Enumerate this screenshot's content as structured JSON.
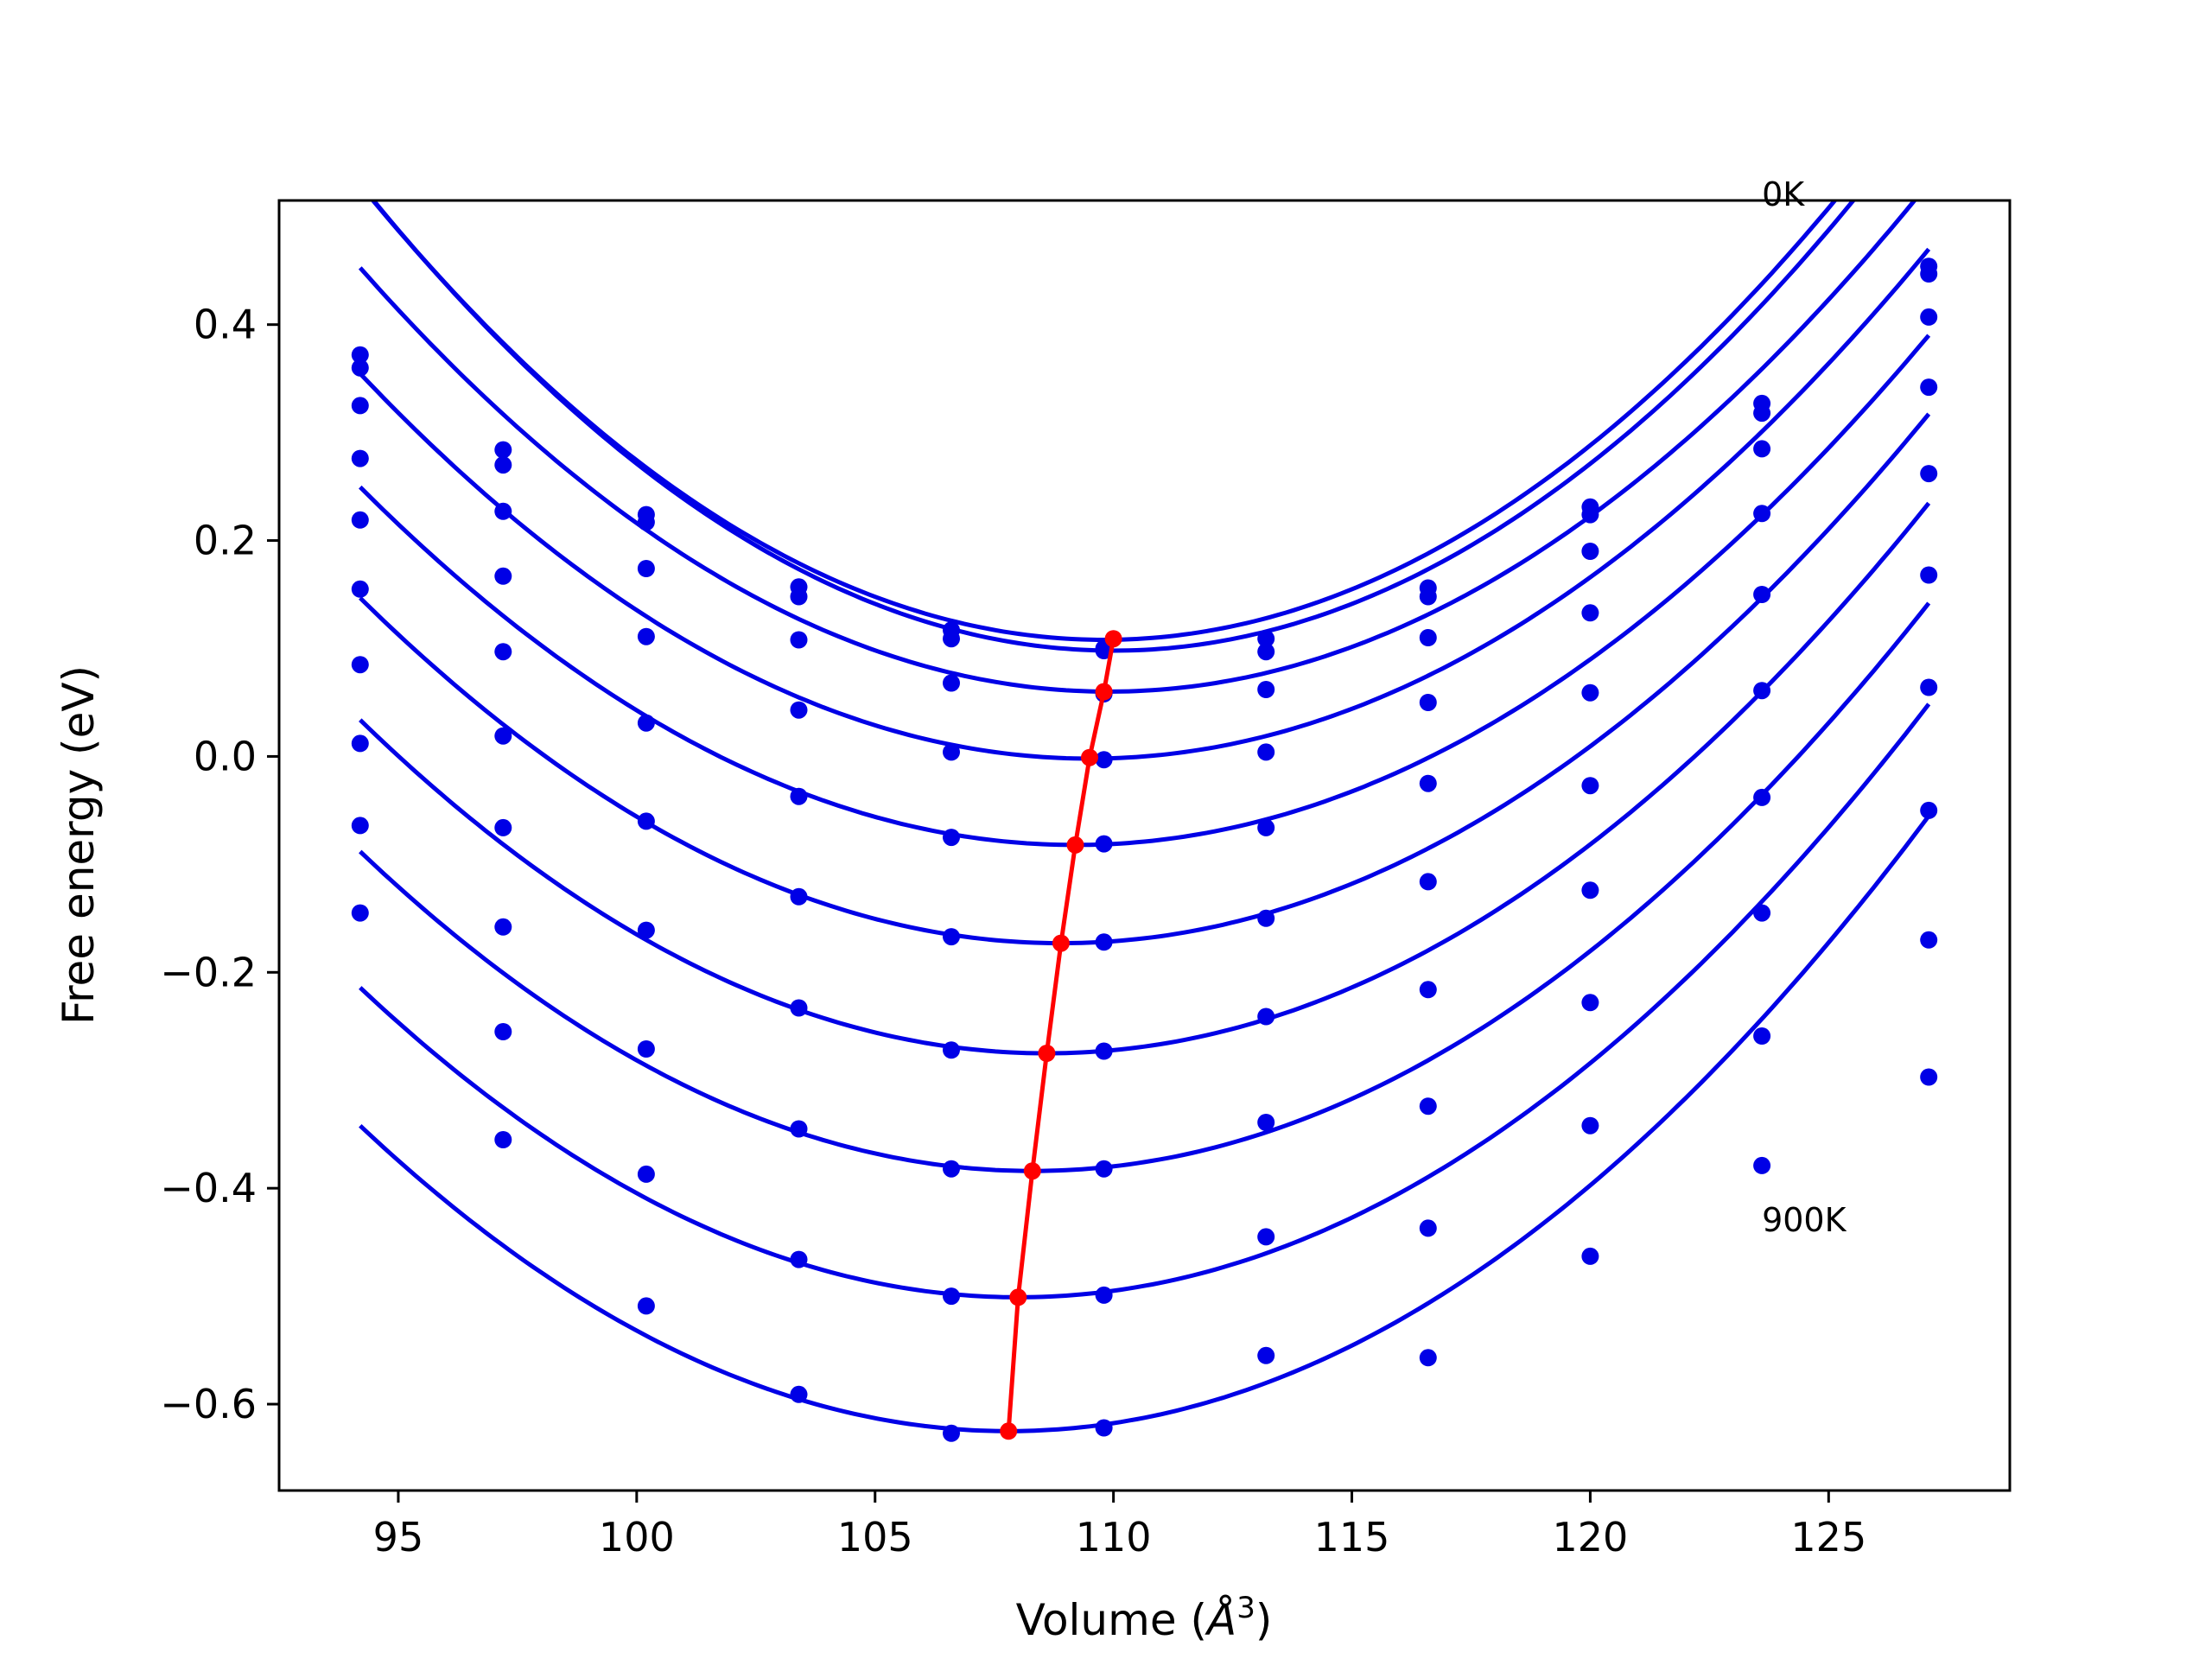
{
  "chart_data": {
    "type": "line",
    "xlabel": "Volume (",
    "xlabel_unit_base": "Å",
    "xlabel_unit_exp": "3",
    "xlabel_suffix": ")",
    "ylabel": "Free energy (eV)",
    "xlim": [
      92.5,
      128.8
    ],
    "ylim": [
      -0.68,
      0.515
    ],
    "xticks": [
      95,
      100,
      105,
      110,
      115,
      120,
      125
    ],
    "xtick_labels": [
      "95",
      "100",
      "105",
      "110",
      "115",
      "120",
      "125"
    ],
    "yticks": [
      -0.6,
      -0.4,
      -0.2,
      0.0,
      0.2,
      0.4
    ],
    "ytick_labels": [
      "−0.6",
      "−0.4",
      "−0.2",
      "0.0",
      "0.2",
      "0.4"
    ],
    "annotations": [
      {
        "text": "0K",
        "x": 123.6,
        "y": 0.51
      },
      {
        "text": "900K",
        "x": 123.6,
        "y": -0.44
      }
    ],
    "colors": {
      "curves": "#0000e6",
      "min_path": "#ff0000",
      "axes": "#000000"
    },
    "volumes": [
      94.2,
      97.2,
      100.2,
      103.4,
      106.6,
      109.8,
      113.2,
      116.6,
      120.0,
      123.6,
      127.1
    ],
    "series": [
      {
        "points": [
          0.372,
          0.284,
          0.224,
          0.157,
          0.117,
          0.1,
          0.109,
          0.156,
          0.231,
          0.327,
          0.454
        ],
        "fit": [
          0.0017316,
          109.8,
          0.108
        ]
      },
      {
        "points": [
          0.36,
          0.27,
          0.217,
          0.148,
          0.109,
          0.098,
          0.097,
          0.148,
          0.224,
          0.318,
          0.447
        ],
        "fit": [
          0.0017316,
          110.0,
          0.098
        ]
      },
      {
        "points": [
          0.325,
          0.227,
          0.174,
          0.108,
          0.068,
          0.058,
          0.062,
          0.11,
          0.19,
          0.285,
          0.407
        ],
        "fit": [
          0.0015929,
          109.9,
          0.06
        ]
      },
      {
        "points": [
          0.276,
          0.167,
          0.111,
          0.043,
          0.004,
          -0.003,
          0.004,
          0.05,
          0.133,
          0.225,
          0.342
        ],
        "fit": [
          0.0015235,
          109.5,
          -0.002
        ]
      },
      {
        "points": [
          0.219,
          0.097,
          0.031,
          -0.037,
          -0.075,
          -0.081,
          -0.066,
          -0.025,
          0.059,
          0.15,
          0.262
        ],
        "fit": [
          0.0014734,
          109.2,
          -0.082
        ]
      },
      {
        "points": [
          0.155,
          0.019,
          -0.06,
          -0.13,
          -0.167,
          -0.172,
          -0.15,
          -0.116,
          -0.027,
          0.061,
          0.168
        ],
        "fit": [
          0.00148,
          108.9,
          -0.173
        ]
      },
      {
        "points": [
          0.085,
          -0.066,
          -0.161,
          -0.233,
          -0.272,
          -0.273,
          -0.241,
          -0.216,
          -0.124,
          -0.038,
          0.064
        ],
        "fit": [
          0.001489,
          108.6,
          -0.275
        ]
      },
      {
        "points": [
          0.012,
          -0.158,
          -0.271,
          -0.345,
          -0.382,
          -0.382,
          -0.339,
          -0.324,
          -0.228,
          -0.145,
          -0.05
        ],
        "fit": [
          0.0014882,
          108.3,
          -0.384
        ]
      },
      {
        "points": [
          -0.064,
          -0.255,
          -0.387,
          -0.466,
          -0.5,
          -0.499,
          -0.445,
          -0.437,
          -0.342,
          -0.259,
          -0.17
        ],
        "fit": [
          0.0015062,
          108.0,
          -0.501
        ]
      },
      {
        "points": [
          -0.145,
          -0.355,
          -0.509,
          -0.591,
          -0.627,
          -0.622,
          -0.555,
          -0.557,
          -0.463,
          -0.379,
          -0.297
        ],
        "fit": [
          0.0015298,
          107.8,
          -0.625
        ]
      }
    ],
    "min_path": {
      "x": [
        110.0,
        109.8,
        109.5,
        109.2,
        108.9,
        108.6,
        108.3,
        108.0,
        107.8
      ],
      "y": [
        0.109,
        0.06,
        -0.001,
        -0.082,
        -0.173,
        -0.275,
        -0.384,
        -0.501,
        -0.625
      ]
    }
  }
}
